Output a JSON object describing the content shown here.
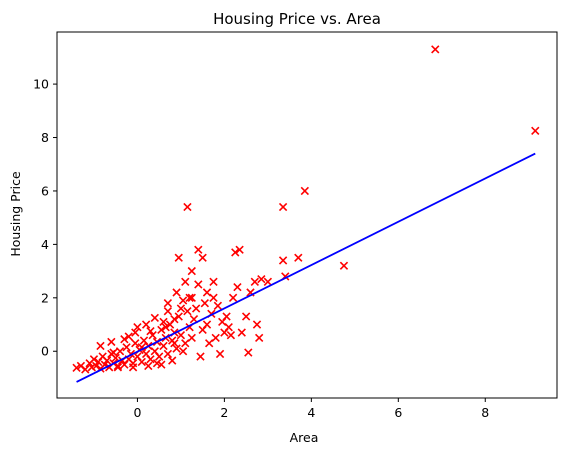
{
  "chart_data": {
    "type": "scatter",
    "title": "Housing Price vs. Area",
    "xlabel": "Area",
    "ylabel": "Housing Price",
    "xlim": [
      -1.85,
      9.65
    ],
    "ylim": [
      -1.75,
      11.95
    ],
    "xticks": [
      0,
      2,
      4,
      6,
      8
    ],
    "yticks": [
      0,
      2,
      4,
      6,
      8,
      10
    ],
    "grid": false,
    "legend": "none",
    "series": [
      {
        "kind": "scatter",
        "marker": "x",
        "color": "#ff0000",
        "points": [
          [
            -1.4,
            -0.62
          ],
          [
            -1.3,
            -0.55
          ],
          [
            -1.2,
            -0.68
          ],
          [
            -1.1,
            -0.45
          ],
          [
            -1.05,
            -0.6
          ],
          [
            -1.0,
            -0.3
          ],
          [
            -0.95,
            -0.55
          ],
          [
            -0.9,
            -0.4
          ],
          [
            -0.85,
            -0.65
          ],
          [
            -0.8,
            -0.2
          ],
          [
            -0.75,
            -0.5
          ],
          [
            -0.7,
            -0.35
          ],
          [
            -0.65,
            -0.6
          ],
          [
            -0.6,
            -0.1
          ],
          [
            -0.55,
            -0.45
          ],
          [
            -0.5,
            -0.25
          ],
          [
            -0.45,
            -0.55
          ],
          [
            -0.4,
            0.0
          ],
          [
            -0.35,
            -0.35
          ],
          [
            -0.3,
            -0.5
          ],
          [
            -0.25,
            0.15
          ],
          [
            -0.2,
            -0.3
          ],
          [
            -0.15,
            -0.1
          ],
          [
            -0.1,
            -0.45
          ],
          [
            -0.05,
            0.3
          ],
          [
            0.0,
            -0.2
          ],
          [
            0.05,
            0.05
          ],
          [
            0.1,
            -0.4
          ],
          [
            0.15,
            0.4
          ],
          [
            0.2,
            -0.1
          ],
          [
            0.25,
            0.2
          ],
          [
            0.3,
            -0.3
          ],
          [
            0.35,
            0.6
          ],
          [
            0.4,
            0.0
          ],
          [
            0.45,
            0.35
          ],
          [
            0.5,
            -0.2
          ],
          [
            0.55,
            0.8
          ],
          [
            0.6,
            0.2
          ],
          [
            0.65,
            0.5
          ],
          [
            0.7,
            -0.1
          ],
          [
            0.75,
            1.0
          ],
          [
            0.8,
            0.4
          ],
          [
            0.85,
            0.7
          ],
          [
            0.9,
            0.1
          ],
          [
            0.95,
            1.3
          ],
          [
            1.0,
            0.6
          ],
          [
            1.05,
            1.9
          ],
          [
            1.1,
            0.3
          ],
          [
            1.15,
            1.5
          ],
          [
            1.2,
            0.9
          ],
          [
            -0.6,
            0.35
          ],
          [
            -0.3,
            0.45
          ],
          [
            -0.05,
            0.7
          ],
          [
            0.2,
            1.0
          ],
          [
            0.4,
            1.25
          ],
          [
            -0.85,
            0.2
          ],
          [
            -0.55,
            -0.05
          ],
          [
            0.0,
            0.9
          ],
          [
            0.3,
            0.75
          ],
          [
            0.6,
            1.1
          ],
          [
            -0.2,
            0.55
          ],
          [
            0.1,
            0.15
          ],
          [
            0.45,
            -0.45
          ],
          [
            0.7,
            1.5
          ],
          [
            0.85,
            1.2
          ],
          [
            -0.45,
            -0.6
          ],
          [
            -0.1,
            -0.6
          ],
          [
            0.25,
            -0.55
          ],
          [
            0.55,
            -0.5
          ],
          [
            0.8,
            -0.35
          ],
          [
            1.0,
            1.6
          ],
          [
            1.2,
            2.0
          ],
          [
            1.3,
            1.2
          ],
          [
            1.4,
            2.5
          ],
          [
            1.5,
            0.8
          ],
          [
            1.55,
            1.8
          ],
          [
            1.6,
            2.2
          ],
          [
            1.7,
            1.4
          ],
          [
            1.75,
            2.6
          ],
          [
            1.8,
            0.5
          ],
          [
            1.85,
            1.7
          ],
          [
            1.9,
            -0.1
          ],
          [
            2.0,
            0.7
          ],
          [
            2.05,
            1.3
          ],
          [
            2.1,
            0.9
          ],
          [
            2.2,
            2.0
          ],
          [
            2.25,
            3.7
          ],
          [
            2.3,
            2.4
          ],
          [
            2.35,
            3.8
          ],
          [
            2.4,
            0.7
          ],
          [
            2.5,
            1.3
          ],
          [
            2.55,
            -0.05
          ],
          [
            2.6,
            2.2
          ],
          [
            2.7,
            2.6
          ],
          [
            2.75,
            1.0
          ],
          [
            2.8,
            0.5
          ],
          [
            2.85,
            2.7
          ],
          [
            3.0,
            2.6
          ],
          [
            3.35,
            3.4
          ],
          [
            3.4,
            2.8
          ],
          [
            1.25,
            3.0
          ],
          [
            1.4,
            3.8
          ],
          [
            1.5,
            3.5
          ],
          [
            0.95,
            3.5
          ],
          [
            1.15,
            5.4
          ],
          [
            0.7,
            1.8
          ],
          [
            0.9,
            2.2
          ],
          [
            1.1,
            2.6
          ],
          [
            1.25,
            2.0
          ],
          [
            1.35,
            1.6
          ],
          [
            0.65,
            0.9
          ],
          [
            0.85,
            0.3
          ],
          [
            1.05,
            0.0
          ],
          [
            1.25,
            0.5
          ],
          [
            1.45,
            -0.2
          ],
          [
            1.6,
            1.0
          ],
          [
            1.65,
            0.3
          ],
          [
            1.75,
            2.0
          ],
          [
            1.95,
            1.1
          ],
          [
            2.15,
            0.6
          ],
          [
            3.35,
            5.4
          ],
          [
            3.85,
            6.0
          ],
          [
            3.7,
            3.5
          ],
          [
            4.75,
            3.2
          ],
          [
            6.85,
            11.3
          ],
          [
            9.15,
            8.25
          ]
        ]
      },
      {
        "kind": "line",
        "color": "#0000ff",
        "x": [
          -1.4,
          9.15
        ],
        "y": [
          -1.15,
          7.4
        ]
      }
    ]
  }
}
